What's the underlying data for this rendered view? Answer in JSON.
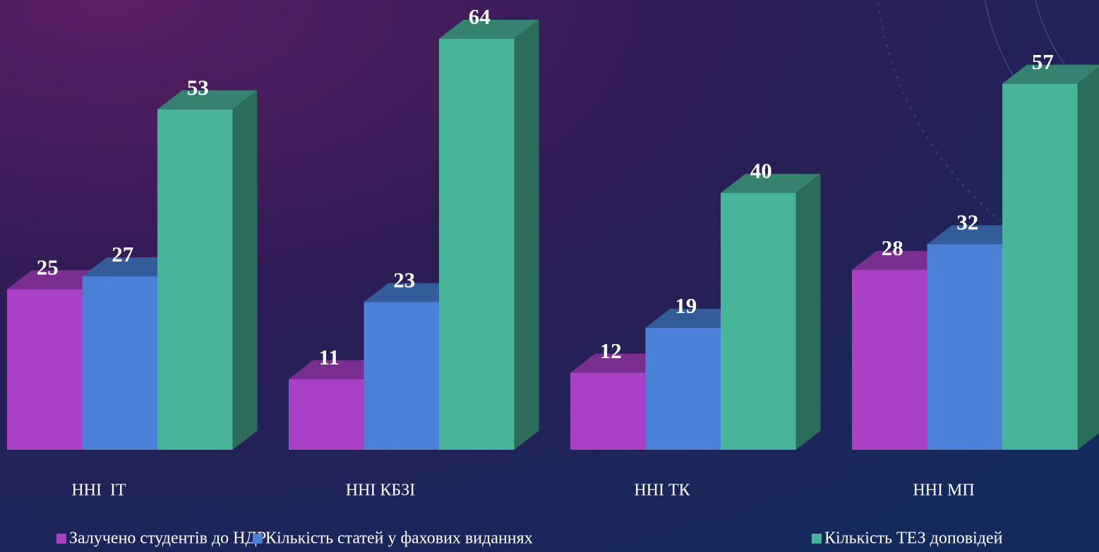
{
  "chart_data": {
    "type": "bar",
    "categories": [
      "ННІ  IT",
      "ННІ КБЗІ",
      "ННІ ТК",
      "ННІ МП"
    ],
    "series": [
      {
        "name": "Залучено студентів до НДР",
        "color": "#a940c6",
        "values": [
          25,
          11,
          12,
          28
        ]
      },
      {
        "name": "Кількість статей у фахових виданнях",
        "color": "#4a80d6",
        "values": [
          27,
          23,
          19,
          32
        ]
      },
      {
        "name": "Кількість ТЕЗ доповідей",
        "color": "#48b49a",
        "values": [
          53,
          64,
          40,
          57
        ]
      }
    ],
    "legend": "bottom"
  }
}
